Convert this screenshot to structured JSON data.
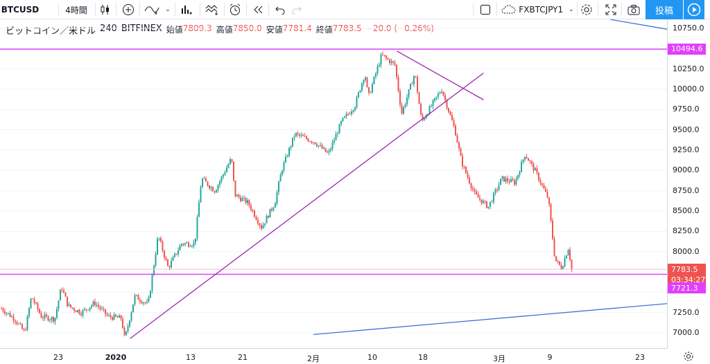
{
  "toolbar": {
    "symbol": "BTCUSD",
    "interval": "4時間",
    "compare_symbol": "FXBTCJPY1",
    "publish_label": "投稿",
    "icons": [
      "candle-style-icon",
      "add-compare-icon",
      "indicators-icon",
      "dropdown-icon",
      "financials-icon",
      "templates-icon",
      "alert-icon",
      "replay-icon",
      "undo-icon",
      "redo-icon",
      "layout-icon",
      "cloud-icon",
      "settings-icon",
      "fullscreen-icon",
      "screenshot-icon",
      "play-icon"
    ]
  },
  "legend": {
    "name": "ビットコイン／米ドル",
    "interval": "240",
    "exchange": "BITFINEX",
    "open_label": "始値",
    "open": "7809.3",
    "high_label": "高値",
    "high": "7850.0",
    "low_label": "安値",
    "low": "7781.4",
    "close_label": "終値",
    "close": "7783.5",
    "change": "−20.0 (−0.26%)"
  },
  "y_ticks": [
    "10750.0",
    "10250.0",
    "10000.0",
    "9750.0",
    "9500.0",
    "9250.0",
    "9000.0",
    "8750.0",
    "8500.0",
    "8250.0",
    "8000.0",
    "7250.0",
    "7000.0"
  ],
  "x_ticks": [
    "23",
    "2020",
    "13",
    "21",
    "2月",
    "10",
    "18",
    "3月",
    "9",
    "23"
  ],
  "price_labels": {
    "top_line": "10494.6",
    "last_price": "7783.5",
    "countdown": "03:34:27",
    "bottom_line": "7721.3"
  },
  "colors": {
    "up": "#26a69a",
    "down": "#ef5350",
    "magenta": "#e040fb",
    "purple": "#9c27b0",
    "blue_line": "#3f6fd8",
    "accent": "#2196f3"
  },
  "chart_data": {
    "type": "candlestick",
    "title": "",
    "xlabel": "",
    "ylabel": "",
    "ylim": [
      6900,
      10860
    ],
    "x_tick_labels": [
      "23",
      "2020",
      "13",
      "21",
      "2月",
      "10",
      "18",
      "3月",
      "9",
      "23"
    ],
    "series": [
      {
        "name": "BTCUSD",
        "path": [
          [
            0,
            7300
          ],
          [
            0.02,
            7170
          ],
          [
            0.035,
            7000
          ],
          [
            0.045,
            7450
          ],
          [
            0.06,
            7200
          ],
          [
            0.08,
            7170
          ],
          [
            0.09,
            7570
          ],
          [
            0.1,
            7330
          ],
          [
            0.12,
            7250
          ],
          [
            0.14,
            7370
          ],
          [
            0.16,
            7200
          ],
          [
            0.18,
            7180
          ],
          [
            0.185,
            6920
          ],
          [
            0.2,
            7450
          ],
          [
            0.22,
            7350
          ],
          [
            0.235,
            8200
          ],
          [
            0.25,
            7800
          ],
          [
            0.27,
            8100
          ],
          [
            0.29,
            8100
          ],
          [
            0.3,
            8900
          ],
          [
            0.32,
            8750
          ],
          [
            0.345,
            9150
          ],
          [
            0.35,
            8700
          ],
          [
            0.37,
            8600
          ],
          [
            0.39,
            8300
          ],
          [
            0.41,
            8600
          ],
          [
            0.42,
            9000
          ],
          [
            0.44,
            9450
          ],
          [
            0.47,
            9350
          ],
          [
            0.49,
            9200
          ],
          [
            0.51,
            9600
          ],
          [
            0.53,
            9800
          ],
          [
            0.545,
            10200
          ],
          [
            0.55,
            9900
          ],
          [
            0.57,
            10420
          ],
          [
            0.59,
            10300
          ],
          [
            0.6,
            9700
          ],
          [
            0.62,
            10200
          ],
          [
            0.63,
            9600
          ],
          [
            0.66,
            10000
          ],
          [
            0.68,
            9500
          ],
          [
            0.69,
            9100
          ],
          [
            0.71,
            8700
          ],
          [
            0.73,
            8550
          ],
          [
            0.75,
            8900
          ],
          [
            0.77,
            8850
          ],
          [
            0.785,
            9200
          ],
          [
            0.8,
            9000
          ],
          [
            0.82,
            8650
          ],
          [
            0.83,
            7900
          ],
          [
            0.84,
            7800
          ],
          [
            0.85,
            8050
          ],
          [
            0.855,
            7783.5
          ]
        ],
        "last": 7783.5
      }
    ],
    "horizontal_lines": [
      10494.6,
      7721.3
    ],
    "trend_lines": [
      {
        "name": "support-trendline",
        "color": "purple",
        "from": [
          0.195,
          6930
        ],
        "to": [
          0.725,
          10200
        ]
      },
      {
        "name": "resistance-trendline",
        "color": "purple",
        "from": [
          0.595,
          10470
        ],
        "to": [
          0.725,
          9870
        ]
      },
      {
        "name": "blue-trendline-lower",
        "color": "blue",
        "from": [
          0.47,
          6980
        ],
        "to": [
          1.0,
          7360
        ]
      },
      {
        "name": "blue-trendline-upper",
        "color": "blue",
        "from": [
          0.915,
          10860
        ],
        "to": [
          1.0,
          10740
        ]
      }
    ],
    "grid": true
  }
}
